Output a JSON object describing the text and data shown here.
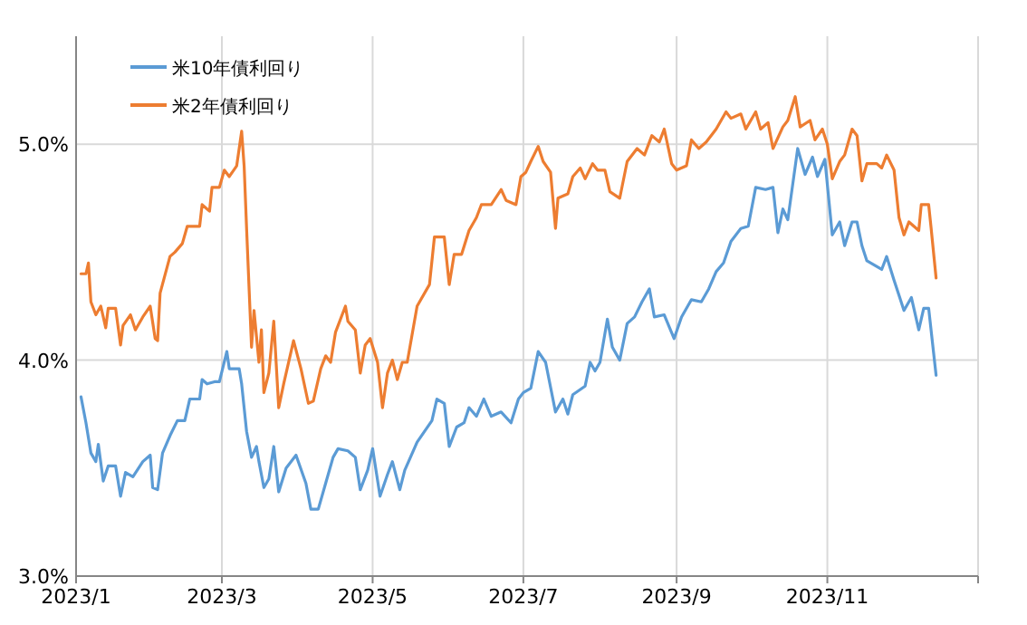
{
  "chart_data": {
    "type": "line",
    "xlim": [
      "2023-01",
      "2024-01"
    ],
    "xticks": [
      {
        "value": "2023-01",
        "label": "2023/1"
      },
      {
        "value": "2023-03",
        "label": "2023/3"
      },
      {
        "value": "2023-05",
        "label": "2023/5"
      },
      {
        "value": "2023-07",
        "label": "2023/7"
      },
      {
        "value": "2023-09",
        "label": "2023/9"
      },
      {
        "value": "2023-11",
        "label": "2023/11"
      },
      {
        "value": "2024-01",
        "label": null
      }
    ],
    "ylim": [
      3,
      5.5
    ],
    "yticks": [
      {
        "value": 3,
        "label": "3.0%"
      },
      {
        "value": 4,
        "label": "4.0%"
      },
      {
        "value": 5,
        "label": "5.0%"
      }
    ],
    "grid": true,
    "legend": "top left",
    "series": [
      {
        "name": "米10年債利回り",
        "color": "#5b9bd5",
        "x": [
          "2023-01-03",
          "2023-01-05",
          "2023-01-07",
          "2023-01-09",
          "2023-01-10",
          "2023-01-12",
          "2023-01-14",
          "2023-01-17",
          "2023-01-19",
          "2023-01-21",
          "2023-01-24",
          "2023-01-28",
          "2023-01-31",
          "2023-02-01",
          "2023-02-03",
          "2023-02-05",
          "2023-02-08",
          "2023-02-11",
          "2023-02-14",
          "2023-02-16",
          "2023-02-20",
          "2023-02-21",
          "2023-02-23",
          "2023-02-26",
          "2023-02-28",
          "2023-03-03",
          "2023-03-04",
          "2023-03-08",
          "2023-03-09",
          "2023-03-11",
          "2023-03-13",
          "2023-03-15",
          "2023-03-16",
          "2023-03-18",
          "2023-03-20",
          "2023-03-22",
          "2023-03-24",
          "2023-03-27",
          "2023-03-31",
          "2023-04-04",
          "2023-04-06",
          "2023-04-09",
          "2023-04-12",
          "2023-04-15",
          "2023-04-17",
          "2023-04-21",
          "2023-04-24",
          "2023-04-26",
          "2023-04-29",
          "2023-05-01",
          "2023-05-04",
          "2023-05-07",
          "2023-05-09",
          "2023-05-12",
          "2023-05-14",
          "2023-05-19",
          "2023-05-25",
          "2023-05-27",
          "2023-05-30",
          "2023-06-01",
          "2023-06-04",
          "2023-06-07",
          "2023-06-09",
          "2023-06-12",
          "2023-06-15",
          "2023-06-18",
          "2023-06-22",
          "2023-06-26",
          "2023-06-29",
          "2023-07-01",
          "2023-07-04",
          "2023-07-07",
          "2023-07-10",
          "2023-07-14",
          "2023-07-17",
          "2023-07-19",
          "2023-07-21",
          "2023-07-26",
          "2023-07-28",
          "2023-07-30",
          "2023-08-01",
          "2023-08-04",
          "2023-08-06",
          "2023-08-09",
          "2023-08-12",
          "2023-08-15",
          "2023-08-18",
          "2023-08-21",
          "2023-08-23",
          "2023-08-27",
          "2023-08-31",
          "2023-09-03",
          "2023-09-07",
          "2023-09-11",
          "2023-09-14",
          "2023-09-17",
          "2023-09-20",
          "2023-09-23",
          "2023-09-27",
          "2023-09-30",
          "2023-10-03",
          "2023-10-07",
          "2023-10-10",
          "2023-10-12",
          "2023-10-14",
          "2023-10-16",
          "2023-10-20",
          "2023-10-23",
          "2023-10-26",
          "2023-10-28",
          "2023-10-31",
          "2023-11-03",
          "2023-11-06",
          "2023-11-08",
          "2023-11-11",
          "2023-11-13",
          "2023-11-15",
          "2023-11-17",
          "2023-11-23",
          "2023-11-25",
          "2023-11-28",
          "2023-11-30",
          "2023-12-02",
          "2023-12-05",
          "2023-12-08",
          "2023-12-10",
          "2023-12-12",
          "2023-12-15"
        ],
        "values": [
          3.83,
          3.71,
          3.57,
          3.53,
          3.61,
          3.44,
          3.51,
          3.51,
          3.37,
          3.48,
          3.46,
          3.53,
          3.56,
          3.41,
          3.4,
          3.57,
          3.65,
          3.72,
          3.72,
          3.82,
          3.82,
          3.91,
          3.89,
          3.9,
          3.9,
          4.04,
          3.96,
          3.96,
          3.89,
          3.67,
          3.55,
          3.6,
          3.53,
          3.41,
          3.45,
          3.6,
          3.39,
          3.5,
          3.56,
          3.43,
          3.31,
          3.31,
          3.43,
          3.55,
          3.59,
          3.58,
          3.55,
          3.4,
          3.49,
          3.59,
          3.37,
          3.47,
          3.53,
          3.4,
          3.49,
          3.62,
          3.72,
          3.82,
          3.8,
          3.6,
          3.69,
          3.71,
          3.78,
          3.74,
          3.82,
          3.74,
          3.76,
          3.71,
          3.82,
          3.85,
          3.87,
          4.04,
          3.99,
          3.76,
          3.82,
          3.75,
          3.84,
          3.88,
          3.99,
          3.95,
          3.99,
          4.19,
          4.06,
          4.0,
          4.17,
          4.2,
          4.27,
          4.33,
          4.2,
          4.21,
          4.1,
          4.2,
          4.28,
          4.27,
          4.33,
          4.41,
          4.45,
          4.55,
          4.61,
          4.62,
          4.8,
          4.79,
          4.8,
          4.59,
          4.7,
          4.65,
          4.98,
          4.86,
          4.94,
          4.85,
          4.93,
          4.58,
          4.64,
          4.53,
          4.64,
          4.64,
          4.53,
          4.46,
          4.42,
          4.48,
          4.37,
          4.3,
          4.23,
          4.29,
          4.14,
          4.24,
          4.24,
          3.93
        ]
      },
      {
        "name": "米2年債利回り",
        "color": "#ed7d31",
        "x": [
          "2023-01-03",
          "2023-01-05",
          "2023-01-06",
          "2023-01-07",
          "2023-01-09",
          "2023-01-11",
          "2023-01-12",
          "2023-01-13",
          "2023-01-14",
          "2023-01-17",
          "2023-01-19",
          "2023-01-20",
          "2023-01-23",
          "2023-01-25",
          "2023-01-28",
          "2023-01-31",
          "2023-02-02",
          "2023-02-03",
          "2023-02-04",
          "2023-02-08",
          "2023-02-10",
          "2023-02-13",
          "2023-02-15",
          "2023-02-20",
          "2023-02-21",
          "2023-02-24",
          "2023-02-25",
          "2023-02-28",
          "2023-03-02",
          "2023-03-04",
          "2023-03-07",
          "2023-03-09",
          "2023-03-10",
          "2023-03-11",
          "2023-03-13",
          "2023-03-14",
          "2023-03-16",
          "2023-03-17",
          "2023-03-18",
          "2023-03-20",
          "2023-03-22",
          "2023-03-24",
          "2023-03-26",
          "2023-03-30",
          "2023-04-02",
          "2023-04-05",
          "2023-04-07",
          "2023-04-10",
          "2023-04-12",
          "2023-04-14",
          "2023-04-16",
          "2023-04-20",
          "2023-04-21",
          "2023-04-24",
          "2023-04-26",
          "2023-04-28",
          "2023-04-30",
          "2023-05-03",
          "2023-05-05",
          "2023-05-07",
          "2023-05-09",
          "2023-05-11",
          "2023-05-13",
          "2023-05-15",
          "2023-05-19",
          "2023-05-24",
          "2023-05-26",
          "2023-05-30",
          "2023-06-01",
          "2023-06-03",
          "2023-06-06",
          "2023-06-09",
          "2023-06-12",
          "2023-06-14",
          "2023-06-18",
          "2023-06-22",
          "2023-06-24",
          "2023-06-28",
          "2023-06-30",
          "2023-07-02",
          "2023-07-04",
          "2023-07-07",
          "2023-07-09",
          "2023-07-12",
          "2023-07-14",
          "2023-07-15",
          "2023-07-19",
          "2023-07-21",
          "2023-07-24",
          "2023-07-26",
          "2023-07-29",
          "2023-07-31",
          "2023-08-03",
          "2023-08-05",
          "2023-08-09",
          "2023-08-12",
          "2023-08-16",
          "2023-08-19",
          "2023-08-22",
          "2023-08-25",
          "2023-08-27",
          "2023-08-30",
          "2023-09-01",
          "2023-09-05",
          "2023-09-07",
          "2023-09-10",
          "2023-09-13",
          "2023-09-17",
          "2023-09-21",
          "2023-09-23",
          "2023-09-27",
          "2023-09-29",
          "2023-10-03",
          "2023-10-05",
          "2023-10-08",
          "2023-10-10",
          "2023-10-14",
          "2023-10-16",
          "2023-10-19",
          "2023-10-21",
          "2023-10-25",
          "2023-10-27",
          "2023-10-30",
          "2023-11-01",
          "2023-11-03",
          "2023-11-06",
          "2023-11-08",
          "2023-11-11",
          "2023-11-13",
          "2023-11-15",
          "2023-11-17",
          "2023-11-21",
          "2023-11-23",
          "2023-11-25",
          "2023-11-28",
          "2023-11-30",
          "2023-12-02",
          "2023-12-04",
          "2023-12-08",
          "2023-12-09",
          "2023-12-12",
          "2023-12-13",
          "2023-12-15"
        ],
        "values": [
          4.4,
          4.4,
          4.45,
          4.27,
          4.21,
          4.25,
          4.2,
          4.15,
          4.24,
          4.24,
          4.07,
          4.16,
          4.21,
          4.14,
          4.2,
          4.25,
          4.1,
          4.09,
          4.31,
          4.48,
          4.5,
          4.54,
          4.62,
          4.62,
          4.72,
          4.69,
          4.8,
          4.8,
          4.88,
          4.85,
          4.9,
          5.06,
          4.9,
          4.61,
          4.06,
          4.23,
          3.99,
          4.14,
          3.85,
          3.94,
          4.18,
          3.78,
          3.89,
          4.09,
          3.96,
          3.8,
          3.81,
          3.96,
          4.02,
          3.99,
          4.13,
          4.25,
          4.18,
          4.14,
          3.94,
          4.07,
          4.1,
          3.99,
          3.78,
          3.94,
          4.0,
          3.91,
          3.99,
          3.99,
          4.25,
          4.35,
          4.57,
          4.57,
          4.35,
          4.49,
          4.49,
          4.6,
          4.66,
          4.72,
          4.72,
          4.79,
          4.74,
          4.72,
          4.85,
          4.87,
          4.92,
          4.99,
          4.92,
          4.87,
          4.61,
          4.75,
          4.77,
          4.85,
          4.89,
          4.84,
          4.91,
          4.88,
          4.88,
          4.78,
          4.75,
          4.92,
          4.98,
          4.95,
          5.04,
          5.01,
          5.07,
          4.91,
          4.88,
          4.9,
          5.02,
          4.98,
          5.01,
          5.07,
          5.15,
          5.12,
          5.14,
          5.07,
          5.15,
          5.07,
          5.1,
          4.98,
          5.08,
          5.11,
          5.22,
          5.08,
          5.11,
          5.02,
          5.07,
          5.0,
          4.84,
          4.92,
          4.95,
          5.07,
          5.04,
          4.83,
          4.91,
          4.91,
          4.89,
          4.95,
          4.88,
          4.66,
          4.58,
          4.64,
          4.6,
          4.72,
          4.72,
          4.61,
          4.38
        ]
      }
    ]
  }
}
